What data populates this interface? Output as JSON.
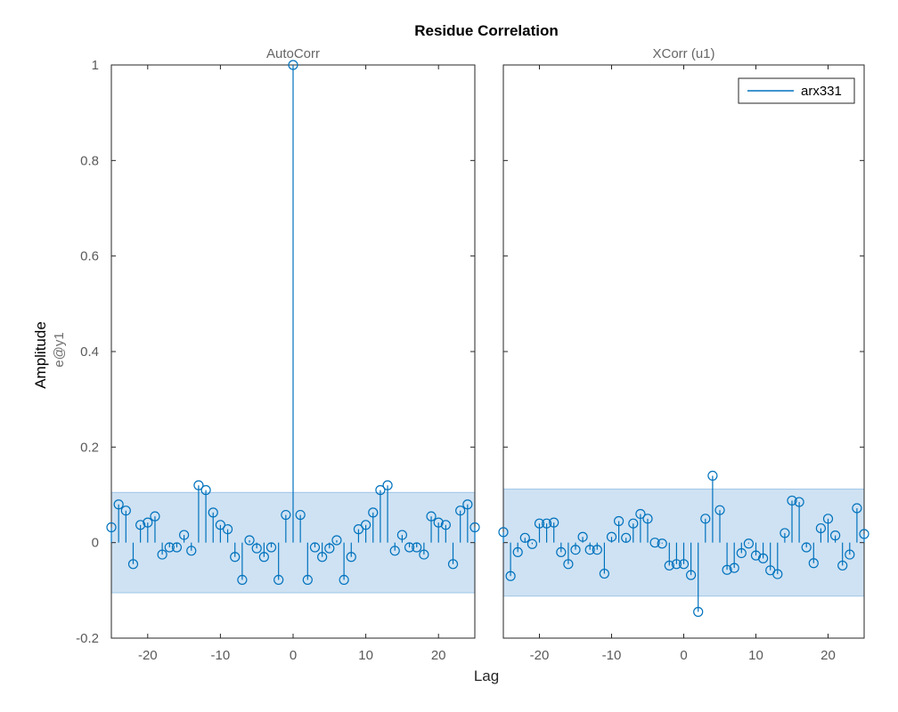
{
  "figure": {
    "title": "Residue Correlation",
    "xlabel": "Lag",
    "ylabel": "Amplitude",
    "ylabel_sub": "e@y1"
  },
  "colors": {
    "series": "#0072BD",
    "band_fill": "#cfe2f3",
    "band_edge": "#9ec5e8",
    "axis": "#262626",
    "tick_text": "#5a5a5a"
  },
  "legend": {
    "entries": [
      "arx331"
    ],
    "placement": "top-right"
  },
  "chart_data": [
    {
      "type": "stem",
      "title": "AutoCorr",
      "xlim": [
        -25,
        25
      ],
      "ylim": [
        -0.2,
        1
      ],
      "x_ticks": [
        -20,
        -10,
        0,
        10,
        20
      ],
      "y_ticks": [
        -0.2,
        0,
        0.2,
        0.4,
        0.6,
        0.8,
        1
      ],
      "y_tick_labels": [
        "-0.2",
        "0",
        "0.2",
        "0.4",
        "0.6",
        "0.8",
        "1"
      ],
      "x_tick_labels": [
        "-20",
        "-10",
        "0",
        "10",
        "20"
      ],
      "confidence_band": [
        -0.105,
        0.105
      ],
      "x": [
        -25,
        -24,
        -23,
        -22,
        -21,
        -20,
        -19,
        -18,
        -17,
        -16,
        -15,
        -14,
        -13,
        -12,
        -11,
        -10,
        -9,
        -8,
        -7,
        -6,
        -5,
        -4,
        -3,
        -2,
        -1,
        0,
        1,
        2,
        3,
        4,
        5,
        6,
        7,
        8,
        9,
        10,
        11,
        12,
        13,
        14,
        15,
        16,
        17,
        18,
        19,
        20,
        21,
        22,
        23,
        24,
        25
      ],
      "y": [
        0.032,
        0.08,
        0.067,
        -0.045,
        0.037,
        0.042,
        0.055,
        -0.025,
        -0.01,
        -0.01,
        0.016,
        -0.017,
        0.12,
        0.11,
        0.063,
        0.037,
        0.028,
        -0.03,
        -0.078,
        0.005,
        -0.012,
        -0.03,
        -0.01,
        -0.078,
        0.058,
        1.0,
        0.058,
        -0.078,
        -0.01,
        -0.03,
        -0.012,
        0.005,
        -0.078,
        -0.03,
        0.028,
        0.037,
        0.063,
        0.11,
        0.12,
        -0.017,
        0.016,
        -0.01,
        -0.01,
        -0.025,
        0.055,
        0.042,
        0.037,
        -0.045,
        0.067,
        0.08,
        0.032
      ]
    },
    {
      "type": "stem",
      "title": "XCorr (u1)",
      "xlim": [
        -25,
        25
      ],
      "ylim": [
        -0.2,
        1
      ],
      "x_ticks": [
        -20,
        -10,
        0,
        10,
        20
      ],
      "x_tick_labels": [
        "-20",
        "-10",
        "0",
        "10",
        "20"
      ],
      "series_name": "arx331",
      "confidence_band": [
        -0.112,
        0.112
      ],
      "x": [
        -25,
        -24,
        -23,
        -22,
        -21,
        -20,
        -19,
        -18,
        -17,
        -16,
        -15,
        -14,
        -13,
        -12,
        -11,
        -10,
        -9,
        -8,
        -7,
        -6,
        -5,
        -4,
        -3,
        -2,
        -1,
        0,
        1,
        2,
        3,
        4,
        5,
        6,
        7,
        8,
        9,
        10,
        11,
        12,
        13,
        14,
        15,
        16,
        17,
        18,
        19,
        20,
        21,
        22,
        23,
        24,
        25
      ],
      "y": [
        0.022,
        -0.07,
        -0.02,
        0.01,
        -0.003,
        0.04,
        0.04,
        0.042,
        -0.02,
        -0.045,
        -0.015,
        0.012,
        -0.015,
        -0.015,
        -0.065,
        0.012,
        0.045,
        0.01,
        0.04,
        0.06,
        0.05,
        0.0,
        -0.002,
        -0.048,
        -0.045,
        -0.045,
        -0.068,
        -0.145,
        0.05,
        0.14,
        0.068,
        -0.057,
        -0.053,
        -0.022,
        -0.002,
        -0.027,
        -0.033,
        -0.058,
        -0.066,
        0.02,
        0.088,
        0.085,
        -0.01,
        -0.043,
        0.03,
        0.05,
        0.015,
        -0.048,
        -0.025,
        0.072,
        0.018
      ]
    }
  ]
}
